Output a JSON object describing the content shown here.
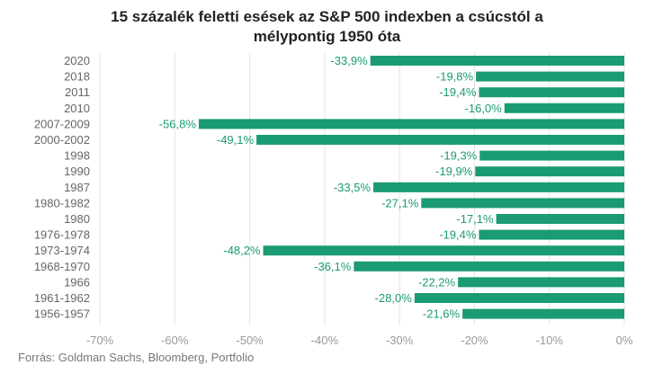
{
  "chart_data": {
    "type": "bar",
    "orientation": "horizontal",
    "title_lines": [
      "15 százalék feletti esések az S&P 500 indexben a csúcstól a",
      "mélypontig 1950 óta"
    ],
    "categories": [
      "2020",
      "2018",
      "2011",
      "2010",
      "2007-2009",
      "2000-2002",
      "1998",
      "1990",
      "1987",
      "1980-1982",
      "1980",
      "1976-1978",
      "1973-1974",
      "1968-1970",
      "1966",
      "1961-1962",
      "1956-1957"
    ],
    "values": [
      -33.9,
      -19.8,
      -19.4,
      -16.0,
      -56.8,
      -49.1,
      -19.3,
      -19.9,
      -33.5,
      -27.1,
      -17.1,
      -19.4,
      -48.2,
      -36.1,
      -22.2,
      -28.0,
      -21.6
    ],
    "data_labels": [
      "-33,9%",
      "-19,8%",
      "-19,4%",
      "-16,0%",
      "-56,8%",
      "-49,1%",
      "-19,3%",
      "-19,9%",
      "-33,5%",
      "-27,1%",
      "-17,1%",
      "-19,4%",
      "-48,2%",
      "-36,1%",
      "-22,2%",
      "-28,0%",
      "-21,6%"
    ],
    "xlim": [
      -70,
      0
    ],
    "x_ticks": [
      -70,
      -60,
      -50,
      -40,
      -30,
      -20,
      -10,
      0
    ],
    "x_tick_labels": [
      "-70%",
      "-60%",
      "-50%",
      "-40%",
      "-30%",
      "-20%",
      "-10%",
      "0%"
    ],
    "grid": true,
    "bar_color": "#1a9b73",
    "label_color": "#1a9b73"
  },
  "source": "Forrás: Goldman Sachs, Bloomberg, Portfolio"
}
